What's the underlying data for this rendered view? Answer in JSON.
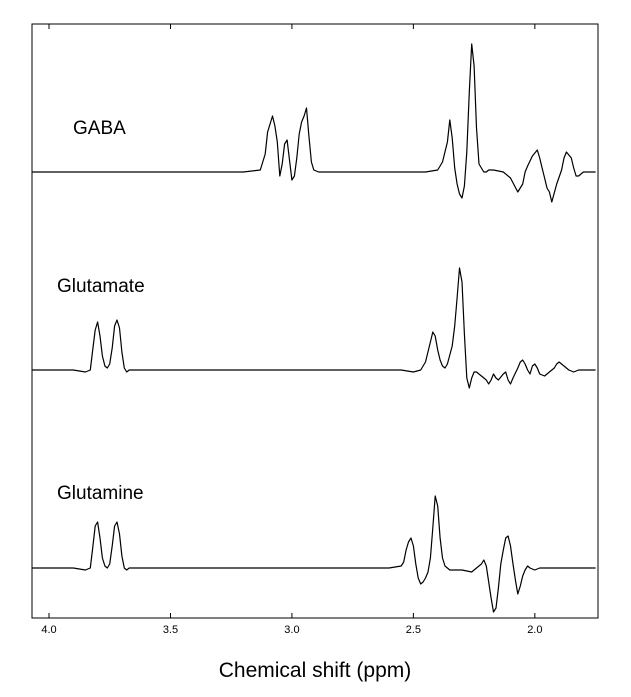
{
  "chart_data": {
    "type": "line",
    "title": "",
    "xlabel": "Chemical shift (ppm)",
    "ylabel": "",
    "x_reversed": true,
    "xlim": [
      4.07,
      1.74
    ],
    "x_ticks": [
      4.0,
      3.5,
      3.0,
      2.5,
      2.0
    ],
    "x_tick_labels": [
      "4.0",
      "3.5",
      "3.0",
      "2.5",
      "2.0"
    ],
    "y_ticks_shown": false,
    "grid": false,
    "legend": "none",
    "line_color": "#000000",
    "series": [
      {
        "name": "GABA",
        "x": [
          4.07,
          3.2,
          3.13,
          3.11,
          3.1,
          3.08,
          3.07,
          3.06,
          3.05,
          3.04,
          3.03,
          3.02,
          3.01,
          3.0,
          2.99,
          2.98,
          2.97,
          2.96,
          2.95,
          2.94,
          2.93,
          2.92,
          2.91,
          2.89,
          2.75,
          2.45,
          2.4,
          2.38,
          2.36,
          2.35,
          2.34,
          2.33,
          2.32,
          2.31,
          2.3,
          2.29,
          2.28,
          2.27,
          2.26,
          2.25,
          2.24,
          2.23,
          2.22,
          2.21,
          2.2,
          2.19,
          2.17,
          2.13,
          2.1,
          2.07,
          2.05,
          2.04,
          2.03,
          2.01,
          1.99,
          1.98,
          1.97,
          1.96,
          1.95,
          1.94,
          1.93,
          1.91,
          1.89,
          1.88,
          1.87,
          1.85,
          1.84,
          1.83,
          1.82,
          1.81,
          1.8,
          1.78,
          1.76,
          1.75
        ],
        "y": [
          0,
          0,
          2,
          18,
          40,
          56,
          46,
          30,
          -4,
          8,
          28,
          32,
          12,
          -8,
          -4,
          14,
          38,
          50,
          56,
          64,
          36,
          10,
          2,
          0,
          0,
          0,
          2,
          10,
          30,
          52,
          34,
          4,
          -12,
          -22,
          -26,
          -14,
          20,
          80,
          128,
          106,
          44,
          8,
          4,
          0,
          0,
          2,
          2,
          0,
          -6,
          -20,
          -12,
          0,
          6,
          16,
          22,
          14,
          4,
          -6,
          -16,
          -20,
          -30,
          -12,
          2,
          14,
          20,
          14,
          4,
          -4,
          -4,
          -2,
          0,
          0,
          0,
          0
        ]
      },
      {
        "name": "Glutamate",
        "x": [
          4.07,
          3.9,
          3.85,
          3.83,
          3.82,
          3.81,
          3.8,
          3.79,
          3.78,
          3.77,
          3.76,
          3.75,
          3.74,
          3.73,
          3.72,
          3.71,
          3.7,
          3.69,
          3.68,
          3.67,
          3.66,
          3.64,
          3.6,
          2.55,
          2.5,
          2.47,
          2.45,
          2.43,
          2.42,
          2.41,
          2.4,
          2.39,
          2.38,
          2.37,
          2.36,
          2.34,
          2.33,
          2.32,
          2.31,
          2.3,
          2.29,
          2.28,
          2.27,
          2.26,
          2.25,
          2.24,
          2.22,
          2.2,
          2.19,
          2.18,
          2.17,
          2.16,
          2.15,
          2.13,
          2.12,
          2.11,
          2.1,
          2.09,
          2.07,
          2.06,
          2.05,
          2.04,
          2.03,
          2.02,
          2.01,
          2.0,
          1.99,
          1.98,
          1.96,
          1.94,
          1.92,
          1.91,
          1.9,
          1.88,
          1.86,
          1.84,
          1.82,
          1.8,
          1.76,
          1.75
        ],
        "y": [
          0,
          0,
          -2,
          0,
          20,
          40,
          48,
          34,
          14,
          4,
          2,
          6,
          22,
          44,
          50,
          42,
          18,
          2,
          -2,
          0,
          0,
          0,
          0,
          0,
          -2,
          0,
          8,
          28,
          38,
          34,
          20,
          10,
          4,
          2,
          6,
          24,
          44,
          72,
          102,
          88,
          36,
          -8,
          -18,
          -8,
          -2,
          -2,
          -6,
          -10,
          -14,
          -10,
          -4,
          -8,
          -10,
          -4,
          -2,
          -10,
          -14,
          -8,
          2,
          8,
          10,
          6,
          0,
          -4,
          4,
          6,
          2,
          -4,
          -6,
          -2,
          2,
          6,
          8,
          4,
          0,
          -2,
          0,
          0,
          0,
          0
        ]
      },
      {
        "name": "Glutamine",
        "x": [
          4.07,
          3.9,
          3.85,
          3.83,
          3.82,
          3.81,
          3.8,
          3.79,
          3.78,
          3.77,
          3.76,
          3.75,
          3.74,
          3.73,
          3.72,
          3.71,
          3.7,
          3.69,
          3.68,
          3.67,
          3.66,
          3.64,
          3.6,
          2.6,
          2.55,
          2.54,
          2.53,
          2.52,
          2.51,
          2.5,
          2.49,
          2.48,
          2.47,
          2.46,
          2.45,
          2.44,
          2.43,
          2.42,
          2.41,
          2.4,
          2.39,
          2.38,
          2.37,
          2.36,
          2.35,
          2.34,
          2.33,
          2.3,
          2.26,
          2.24,
          2.22,
          2.21,
          2.2,
          2.19,
          2.18,
          2.17,
          2.16,
          2.15,
          2.14,
          2.13,
          2.12,
          2.11,
          2.1,
          2.09,
          2.08,
          2.07,
          2.06,
          2.05,
          2.04,
          2.03,
          2.02,
          2.0,
          1.98,
          1.9,
          1.75
        ],
        "y": [
          0,
          0,
          -2,
          0,
          20,
          42,
          46,
          30,
          10,
          2,
          0,
          4,
          22,
          42,
          46,
          34,
          12,
          0,
          -2,
          0,
          0,
          0,
          0,
          0,
          2,
          6,
          18,
          26,
          30,
          22,
          4,
          -10,
          -16,
          -14,
          -10,
          -4,
          10,
          40,
          72,
          62,
          30,
          10,
          2,
          0,
          -2,
          -2,
          -2,
          -2,
          -4,
          0,
          4,
          8,
          2,
          -14,
          -30,
          -44,
          -40,
          -20,
          4,
          18,
          30,
          32,
          22,
          4,
          -12,
          -26,
          -18,
          -8,
          -2,
          2,
          0,
          -2,
          0,
          0,
          0
        ]
      }
    ]
  }
}
